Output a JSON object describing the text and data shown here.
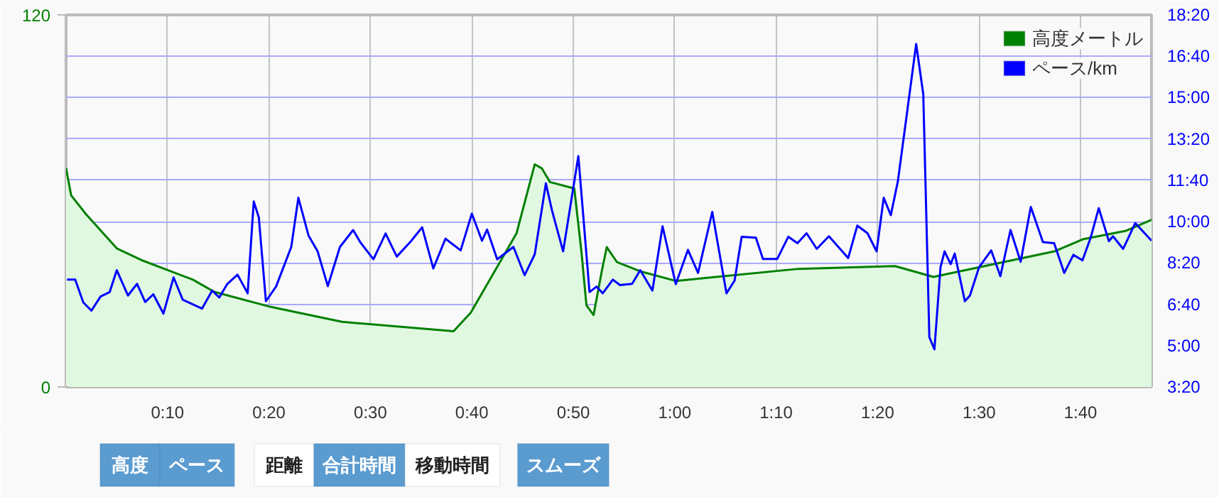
{
  "chart_data": {
    "type": "line",
    "xlim": [
      0,
      107
    ],
    "xticks": [
      {
        "value": 10,
        "label": "0:10"
      },
      {
        "value": 20,
        "label": "0:20"
      },
      {
        "value": 30,
        "label": "0:30"
      },
      {
        "value": 40,
        "label": "0:40"
      },
      {
        "value": 50,
        "label": "0:50"
      },
      {
        "value": 60,
        "label": "1:00"
      },
      {
        "value": 70,
        "label": "1:10"
      },
      {
        "value": 80,
        "label": "1:20"
      },
      {
        "value": 90,
        "label": "1:30"
      },
      {
        "value": 100,
        "label": "1:40"
      }
    ],
    "ylim": [
      0,
      120
    ],
    "yticks": [
      0,
      120
    ],
    "y2lim": [
      3.3333,
      18.3333
    ],
    "y2ticks": [
      {
        "value": 3.3333,
        "label": "3:20"
      },
      {
        "value": 5,
        "label": "5:00"
      },
      {
        "value": 6.6667,
        "label": "6:40"
      },
      {
        "value": 8.3333,
        "label": "8:20"
      },
      {
        "value": 10,
        "label": "10:00"
      },
      {
        "value": 11.6667,
        "label": "11:40"
      },
      {
        "value": 13.3333,
        "label": "13:20"
      },
      {
        "value": 15,
        "label": "15:00"
      },
      {
        "value": 16.6667,
        "label": "16:40"
      },
      {
        "value": 18.3333,
        "label": "18:20"
      }
    ],
    "grid": true,
    "legend": "top right",
    "series": [
      {
        "name": "高度メートル",
        "type": "area",
        "color": "#008000",
        "x": [
          0,
          0.5,
          2,
          5,
          7.6,
          12.5,
          14.6,
          20.2,
          27.2,
          38.2,
          39.9,
          44.4,
          46.2,
          46.9,
          47.7,
          50.1,
          50.8,
          51.3,
          52,
          52.8,
          53.3,
          54.3,
          56.7,
          60.1,
          72.2,
          81.7,
          85.5,
          97.5,
          100.3,
          104.5,
          107
        ],
        "values": [
          70.5,
          61.8,
          55.6,
          44.7,
          40.7,
          34.6,
          30.7,
          25.8,
          21,
          18,
          24,
          49.5,
          71.8,
          70.5,
          66.1,
          64,
          43.8,
          26.3,
          23.2,
          37.2,
          45.1,
          40.3,
          37.2,
          34.2,
          38.1,
          39,
          35.5,
          43.8,
          47.7,
          50.4,
          53.9
        ]
      },
      {
        "name": "ペース/km",
        "type": "line",
        "axis": "y2",
        "color": "#0000ff",
        "x": [
          0.1,
          0.9,
          1.7,
          2.5,
          3.4,
          4.3,
          5.0,
          6.1,
          7.0,
          7.8,
          8.6,
          9.6,
          10.6,
          11.5,
          13.4,
          14.4,
          15.1,
          15.9,
          16.9,
          17.9,
          18.5,
          19.0,
          19.7,
          20.7,
          22.2,
          22.9,
          23.9,
          24.8,
          25.8,
          27.0,
          28.3,
          29.0,
          30.3,
          31.5,
          32.6,
          34.0,
          35.1,
          36.2,
          37.4,
          38.9,
          40.0,
          41.0,
          41.5,
          42.5,
          44.1,
          45.2,
          46.2,
          47.3,
          47.9,
          49.0,
          50.5,
          51.6,
          52.3,
          52.9,
          53.9,
          54.6,
          55.8,
          56.6,
          57.8,
          58.8,
          60.1,
          61.3,
          62.3,
          63.7,
          65.1,
          65.9,
          66.6,
          68.0,
          68.7,
          70.1,
          71.2,
          72.1,
          73.0,
          74.0,
          75.2,
          77.1,
          78.0,
          79.0,
          79.9,
          80.6,
          81.3,
          82.0,
          83.8,
          84.5,
          85.1,
          85.6,
          86.2,
          86.6,
          87.2,
          87.6,
          88.6,
          89.1,
          90.0,
          91.2,
          92.1,
          93.1,
          94.1,
          95.1,
          96.3,
          97.4,
          98.4,
          99.3,
          100.2,
          101.0,
          101.8,
          102.8,
          103.2,
          104.2,
          105.4,
          107.0
        ],
        "values": [
          7.66,
          7.66,
          6.74,
          6.41,
          6.98,
          7.16,
          8.04,
          7.02,
          7.49,
          6.76,
          7.07,
          6.29,
          7.75,
          6.85,
          6.49,
          7.22,
          6.94,
          7.49,
          7.86,
          7.11,
          10.81,
          10.17,
          6.79,
          7.38,
          8.98,
          10.96,
          9.44,
          8.8,
          7.4,
          8.98,
          9.66,
          9.17,
          8.48,
          9.52,
          8.59,
          9.21,
          9.77,
          8.11,
          9.31,
          8.84,
          10.32,
          9.23,
          9.68,
          8.48,
          8.98,
          7.84,
          8.68,
          11.54,
          10.45,
          8.8,
          12.64,
          7.16,
          7.38,
          7.11,
          7.66,
          7.44,
          7.49,
          8.04,
          7.22,
          9.81,
          7.48,
          8.86,
          7.93,
          10.39,
          7.11,
          7.62,
          9.39,
          9.35,
          8.49,
          8.49,
          9.39,
          9.13,
          9.53,
          8.9,
          9.41,
          8.53,
          9.84,
          9.53,
          8.8,
          10.96,
          10.26,
          11.63,
          17.16,
          15.14,
          5.34,
          4.85,
          8.16,
          8.8,
          8.29,
          8.71,
          6.79,
          7.02,
          8.16,
          8.84,
          7.8,
          9.66,
          8.38,
          10.59,
          9.17,
          9.13,
          7.93,
          8.66,
          8.44,
          9.35,
          10.54,
          9.21,
          9.41,
          8.9,
          9.94,
          9.23
        ]
      }
    ],
    "annotations": [
      "高度",
      "ペース",
      "距離",
      "合計時間",
      "移動時間",
      "スムーズ"
    ]
  }
}
